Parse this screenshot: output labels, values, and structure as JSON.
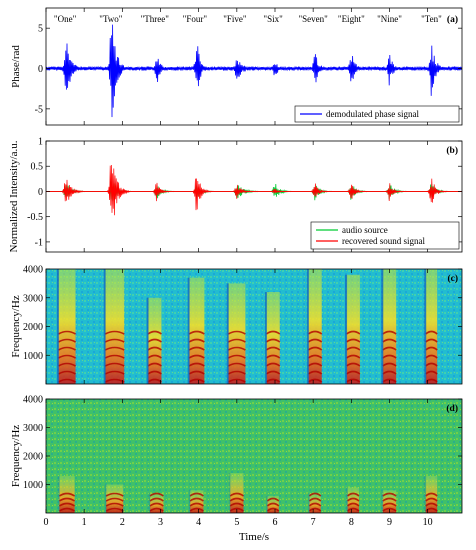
{
  "chart_data": [
    {
      "id": "a",
      "type": "line",
      "panel_label": "(a)",
      "ylabel": "Phase/rad",
      "ylim": [
        -7,
        7.5
      ],
      "yticks": [
        -5,
        0,
        5
      ],
      "xlim": [
        0,
        10.9
      ],
      "legend": {
        "placement": "bottom-right",
        "entries": [
          {
            "name": "demodulated phase signal",
            "color": "#0000ff"
          }
        ]
      },
      "word_labels": [
        {
          "text": "\"One\"",
          "x": 0.5
        },
        {
          "text": "\"Two\"",
          "x": 1.7
        },
        {
          "text": "\"Three\"",
          "x": 2.85
        },
        {
          "text": "\"Four\"",
          "x": 3.9
        },
        {
          "text": "\"Five\"",
          "x": 4.95
        },
        {
          "text": "\"Six\"",
          "x": 5.95
        },
        {
          "text": "\"Seven\"",
          "x": 7.0
        },
        {
          "text": "\"Eight\"",
          "x": 8.0
        },
        {
          "text": "\"Nine\"",
          "x": 9.0
        },
        {
          "text": "\"Ten\"",
          "x": 10.1
        }
      ],
      "series": [
        {
          "name": "demodulated phase signal",
          "color": "#0000ff",
          "bursts": [
            {
              "t": 0.52,
              "amp": 4.5,
              "width": 0.25
            },
            {
              "t": 1.72,
              "amp": 7.0,
              "width": 0.25
            },
            {
              "t": 2.9,
              "amp": 2.3,
              "width": 0.2
            },
            {
              "t": 3.95,
              "amp": 3.8,
              "width": 0.2
            },
            {
              "t": 5.0,
              "amp": 1.8,
              "width": 0.3
            },
            {
              "t": 6.0,
              "amp": 1.2,
              "width": 0.2
            },
            {
              "t": 7.05,
              "amp": 2.3,
              "width": 0.2
            },
            {
              "t": 8.0,
              "amp": 2.5,
              "width": 0.2
            },
            {
              "t": 9.0,
              "amp": 2.2,
              "width": 0.2
            },
            {
              "t": 10.1,
              "amp": 3.5,
              "width": 0.22
            }
          ]
        }
      ]
    },
    {
      "id": "b",
      "type": "line",
      "panel_label": "(b)",
      "ylabel": "Normalized Intensity/a.u.",
      "ylim": [
        -1.2,
        1.0
      ],
      "yticks": [
        -1,
        -0.5,
        0,
        0.5,
        1
      ],
      "xlim": [
        0,
        10.9
      ],
      "legend": {
        "placement": "bottom-right",
        "entries": [
          {
            "name": "audio source",
            "color": "#00cc33"
          },
          {
            "name": "recovered sound signal",
            "color": "#ff0000"
          }
        ]
      },
      "series": [
        {
          "name": "audio source",
          "color": "#00cc33",
          "bursts": [
            {
              "t": 0.52,
              "amp": 0.2,
              "width": 0.3
            },
            {
              "t": 1.72,
              "amp": 0.25,
              "width": 0.3
            },
            {
              "t": 2.9,
              "amp": 0.18,
              "width": 0.25
            },
            {
              "t": 3.95,
              "amp": 0.18,
              "width": 0.25
            },
            {
              "t": 5.0,
              "amp": 0.18,
              "width": 0.35
            },
            {
              "t": 6.0,
              "amp": 0.18,
              "width": 0.25
            },
            {
              "t": 7.05,
              "amp": 0.18,
              "width": 0.25
            },
            {
              "t": 8.0,
              "amp": 0.18,
              "width": 0.25
            },
            {
              "t": 9.0,
              "amp": 0.18,
              "width": 0.25
            },
            {
              "t": 10.1,
              "amp": 0.2,
              "width": 0.25
            }
          ]
        },
        {
          "name": "recovered sound signal",
          "color": "#ff0000",
          "bursts": [
            {
              "t": 0.52,
              "amp": 0.4,
              "width": 0.25
            },
            {
              "t": 1.72,
              "amp": 0.95,
              "width": 0.25
            },
            {
              "t": 2.9,
              "amp": 0.2,
              "width": 0.2
            },
            {
              "t": 3.95,
              "amp": 0.45,
              "width": 0.2
            },
            {
              "t": 5.0,
              "amp": 0.15,
              "width": 0.25
            },
            {
              "t": 6.0,
              "amp": 0.08,
              "width": 0.15
            },
            {
              "t": 7.05,
              "amp": 0.18,
              "width": 0.2
            },
            {
              "t": 8.0,
              "amp": 0.2,
              "width": 0.2
            },
            {
              "t": 9.0,
              "amp": 0.2,
              "width": 0.2
            },
            {
              "t": 10.1,
              "amp": 0.3,
              "width": 0.22
            }
          ]
        }
      ]
    },
    {
      "id": "c",
      "type": "heatmap",
      "panel_label": "(c)",
      "ylabel": "Frequency/Hz",
      "ylim": [
        0,
        4000
      ],
      "yticks": [
        1000,
        2000,
        3000,
        4000
      ],
      "xlim": [
        0,
        10.9
      ],
      "background_color": "#22bcd0",
      "words": [
        {
          "t": 0.55,
          "width": 0.45,
          "top_hz": 4000
        },
        {
          "t": 1.8,
          "width": 0.5,
          "top_hz": 4000
        },
        {
          "t": 2.85,
          "width": 0.35,
          "top_hz": 3000
        },
        {
          "t": 3.95,
          "width": 0.4,
          "top_hz": 3700
        },
        {
          "t": 5.0,
          "width": 0.45,
          "top_hz": 3500
        },
        {
          "t": 5.95,
          "width": 0.35,
          "top_hz": 3200
        },
        {
          "t": 7.05,
          "width": 0.35,
          "top_hz": 4000
        },
        {
          "t": 8.05,
          "width": 0.35,
          "top_hz": 3800
        },
        {
          "t": 9.0,
          "width": 0.35,
          "top_hz": 4000
        },
        {
          "t": 10.1,
          "width": 0.3,
          "top_hz": 4000
        }
      ]
    },
    {
      "id": "d",
      "type": "heatmap",
      "panel_label": "(d)",
      "ylabel": "Frequency/Hz",
      "xlabel": "Time/s",
      "ylim": [
        0,
        4000
      ],
      "yticks": [
        1000,
        2000,
        3000,
        4000
      ],
      "xlim": [
        0,
        10.9
      ],
      "xticks": [
        0,
        1,
        2,
        3,
        4,
        5,
        6,
        7,
        8,
        9,
        10
      ],
      "background_color": "#3fc06a",
      "words": [
        {
          "t": 0.55,
          "width": 0.4,
          "top_hz": 1300
        },
        {
          "t": 1.8,
          "width": 0.45,
          "top_hz": 1000
        },
        {
          "t": 2.9,
          "width": 0.35,
          "top_hz": 700
        },
        {
          "t": 3.95,
          "width": 0.35,
          "top_hz": 800
        },
        {
          "t": 5.0,
          "width": 0.35,
          "top_hz": 1400
        },
        {
          "t": 5.95,
          "width": 0.3,
          "top_hz": 600
        },
        {
          "t": 7.05,
          "width": 0.3,
          "top_hz": 700
        },
        {
          "t": 8.05,
          "width": 0.3,
          "top_hz": 900
        },
        {
          "t": 9.0,
          "width": 0.35,
          "top_hz": 800
        },
        {
          "t": 10.1,
          "width": 0.3,
          "top_hz": 1300
        }
      ]
    }
  ]
}
